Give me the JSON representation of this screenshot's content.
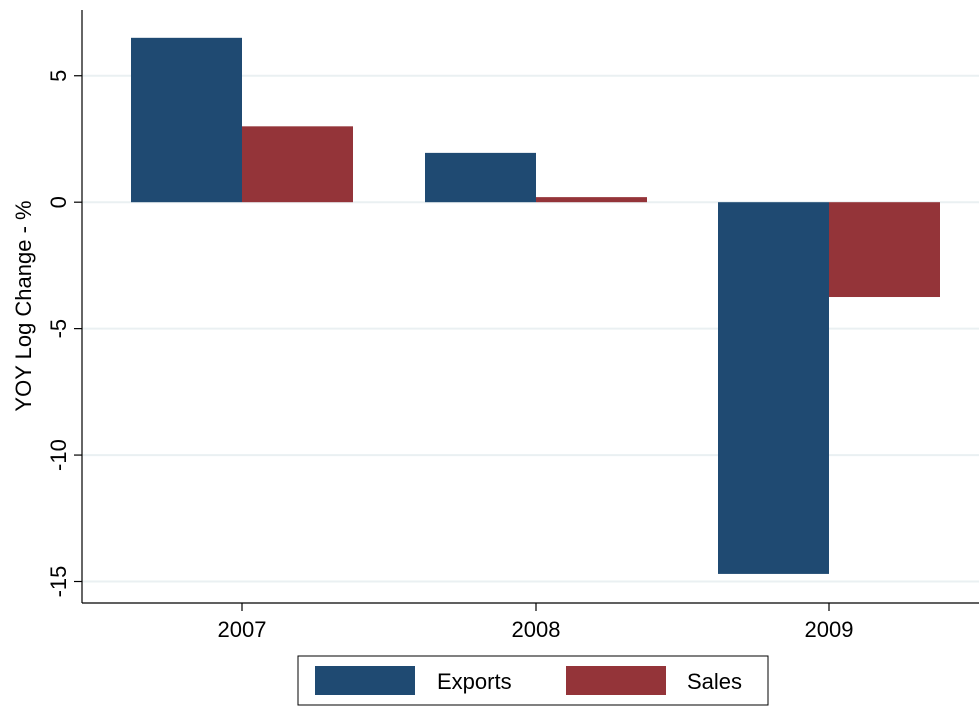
{
  "chart_data": {
    "type": "bar",
    "title": "",
    "xlabel": "",
    "ylabel": "YOY Log Change - %",
    "categories": [
      "2007",
      "2008",
      "2009"
    ],
    "series": [
      {
        "name": "Exports",
        "color": "#1f4a72",
        "values": [
          6.5,
          1.95,
          -14.7
        ]
      },
      {
        "name": "Sales",
        "color": "#943439",
        "values": [
          3.0,
          0.2,
          -3.75
        ]
      }
    ],
    "yticks": [
      5,
      0,
      -5,
      -10,
      -15
    ],
    "ytick_labels": [
      "5",
      "0",
      "-5",
      "-10",
      "-15"
    ],
    "ylim": [
      -15.85,
      7.6
    ],
    "grid": true,
    "legend_position": "bottom"
  }
}
